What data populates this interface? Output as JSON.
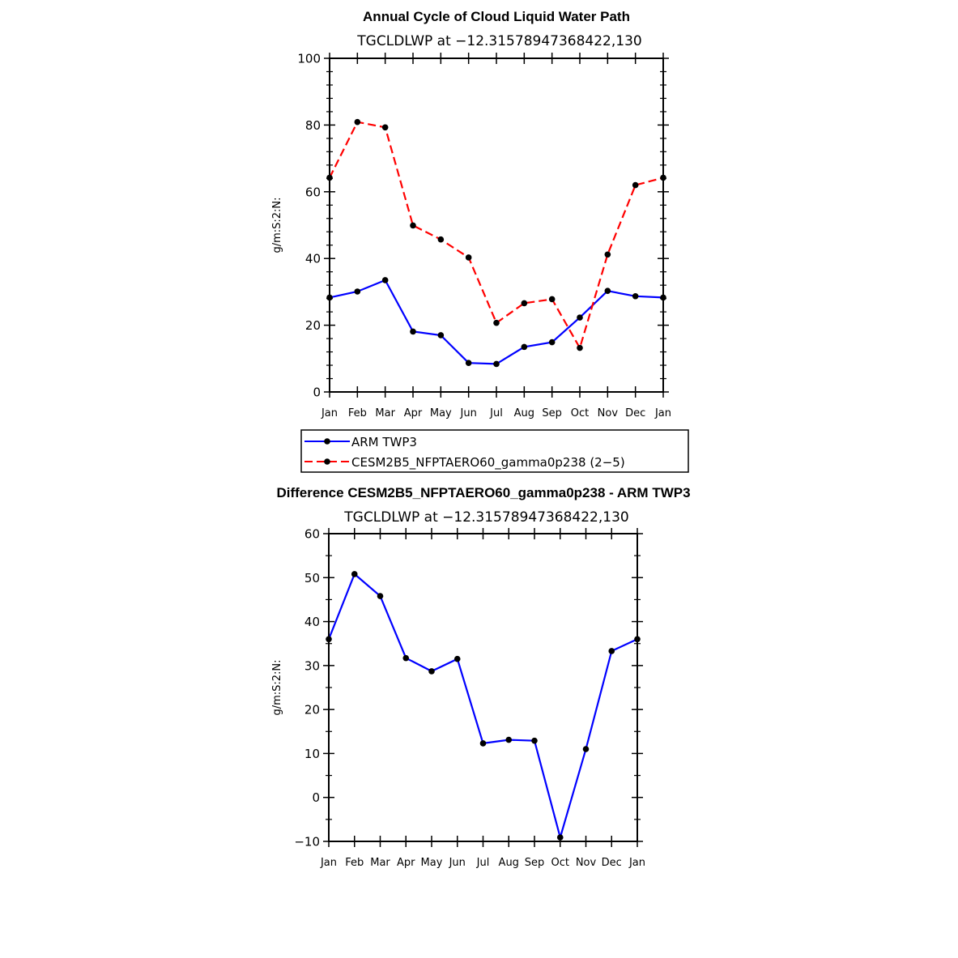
{
  "chart_data": [
    {
      "type": "line",
      "title": "Annual Cycle of Cloud Liquid Water Path",
      "subtitle": "TGCLDLWP  at  −12.31578947368422,130",
      "ylabel": "g/m:S:2:N:",
      "categories": [
        "Jan",
        "Feb",
        "Mar",
        "Apr",
        "May",
        "Jun",
        "Jul",
        "Aug",
        "Sep",
        "Oct",
        "Nov",
        "Dec",
        "Jan"
      ],
      "ylim": [
        0,
        100
      ],
      "yticks": [
        "0",
        "20",
        "40",
        "60",
        "80",
        "100"
      ],
      "series": [
        {
          "name": "ARM TWP3",
          "color": "#0000ff",
          "dash": "solid",
          "values": [
            28.3,
            30.1,
            33.5,
            18.1,
            17.0,
            8.7,
            8.4,
            13.5,
            14.9,
            22.3,
            30.3,
            28.7,
            28.3
          ]
        },
        {
          "name": "CESM2B5_NFPTAERO60_gamma0p238 (2−5)",
          "color": "#ff0000",
          "dash": "dashed",
          "values": [
            64.2,
            80.9,
            79.3,
            49.9,
            45.7,
            40.3,
            20.7,
            26.6,
            27.8,
            13.2,
            41.2,
            62.0,
            64.2
          ]
        }
      ],
      "legend": "below"
    },
    {
      "type": "line",
      "title": "Difference CESM2B5_NFPTAERO60_gamma0p238 - ARM TWP3",
      "subtitle": "TGCLDLWP  at  −12.31578947368422,130",
      "ylabel": "g/m:S:2:N:",
      "categories": [
        "Jan",
        "Feb",
        "Mar",
        "Apr",
        "May",
        "Jun",
        "Jul",
        "Aug",
        "Sep",
        "Oct",
        "Nov",
        "Dec",
        "Jan"
      ],
      "ylim": [
        -10,
        60
      ],
      "yticks": [
        "−10",
        "0",
        "10",
        "20",
        "30",
        "40",
        "50",
        "60"
      ],
      "series": [
        {
          "name": "Difference",
          "color": "#0000ff",
          "dash": "solid",
          "values": [
            36.0,
            50.8,
            45.8,
            31.7,
            28.7,
            31.5,
            12.3,
            13.1,
            12.9,
            -9.1,
            11.0,
            33.3,
            36.0
          ]
        }
      ]
    }
  ]
}
